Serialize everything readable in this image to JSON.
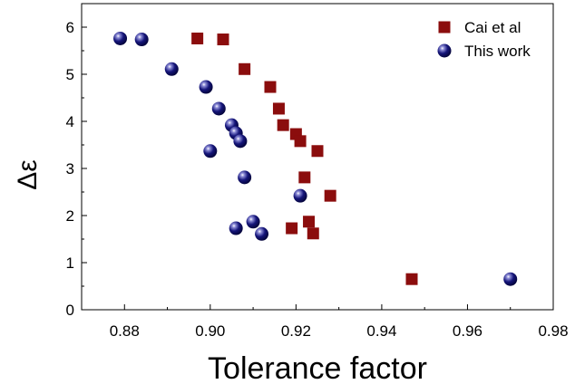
{
  "chart_data": {
    "type": "scatter",
    "xlabel": "Tolerance factor",
    "ylabel": "Δε",
    "xlim": [
      0.87,
      0.98
    ],
    "ylim": [
      0,
      6.5
    ],
    "xticks": [
      "0.88",
      "0.90",
      "0.92",
      "0.94",
      "0.96",
      "0.98"
    ],
    "yticks": [
      "0",
      "1",
      "2",
      "3",
      "4",
      "5",
      "6"
    ],
    "grid": false,
    "legend_position": "top-right",
    "series": [
      {
        "name": "Cai et al",
        "marker": "square",
        "color": "#8b0d0d",
        "points": [
          {
            "x": 0.897,
            "y": 5.76
          },
          {
            "x": 0.903,
            "y": 5.74
          },
          {
            "x": 0.908,
            "y": 5.11
          },
          {
            "x": 0.914,
            "y": 4.73
          },
          {
            "x": 0.916,
            "y": 4.27
          },
          {
            "x": 0.917,
            "y": 3.92
          },
          {
            "x": 0.92,
            "y": 3.73
          },
          {
            "x": 0.921,
            "y": 3.58
          },
          {
            "x": 0.925,
            "y": 3.37
          },
          {
            "x": 0.922,
            "y": 2.81
          },
          {
            "x": 0.928,
            "y": 2.42
          },
          {
            "x": 0.923,
            "y": 1.87
          },
          {
            "x": 0.919,
            "y": 1.73
          },
          {
            "x": 0.924,
            "y": 1.62
          },
          {
            "x": 0.947,
            "y": 0.65
          }
        ]
      },
      {
        "name": "This work",
        "marker": "sphere",
        "color": "#15157a",
        "points": [
          {
            "x": 0.879,
            "y": 5.76
          },
          {
            "x": 0.884,
            "y": 5.74
          },
          {
            "x": 0.891,
            "y": 5.11
          },
          {
            "x": 0.899,
            "y": 4.73
          },
          {
            "x": 0.902,
            "y": 4.27
          },
          {
            "x": 0.905,
            "y": 3.92
          },
          {
            "x": 0.906,
            "y": 3.75
          },
          {
            "x": 0.907,
            "y": 3.58
          },
          {
            "x": 0.9,
            "y": 3.37
          },
          {
            "x": 0.908,
            "y": 2.81
          },
          {
            "x": 0.921,
            "y": 2.42
          },
          {
            "x": 0.91,
            "y": 1.87
          },
          {
            "x": 0.906,
            "y": 1.73
          },
          {
            "x": 0.912,
            "y": 1.61
          },
          {
            "x": 0.97,
            "y": 0.65
          }
        ]
      }
    ]
  }
}
